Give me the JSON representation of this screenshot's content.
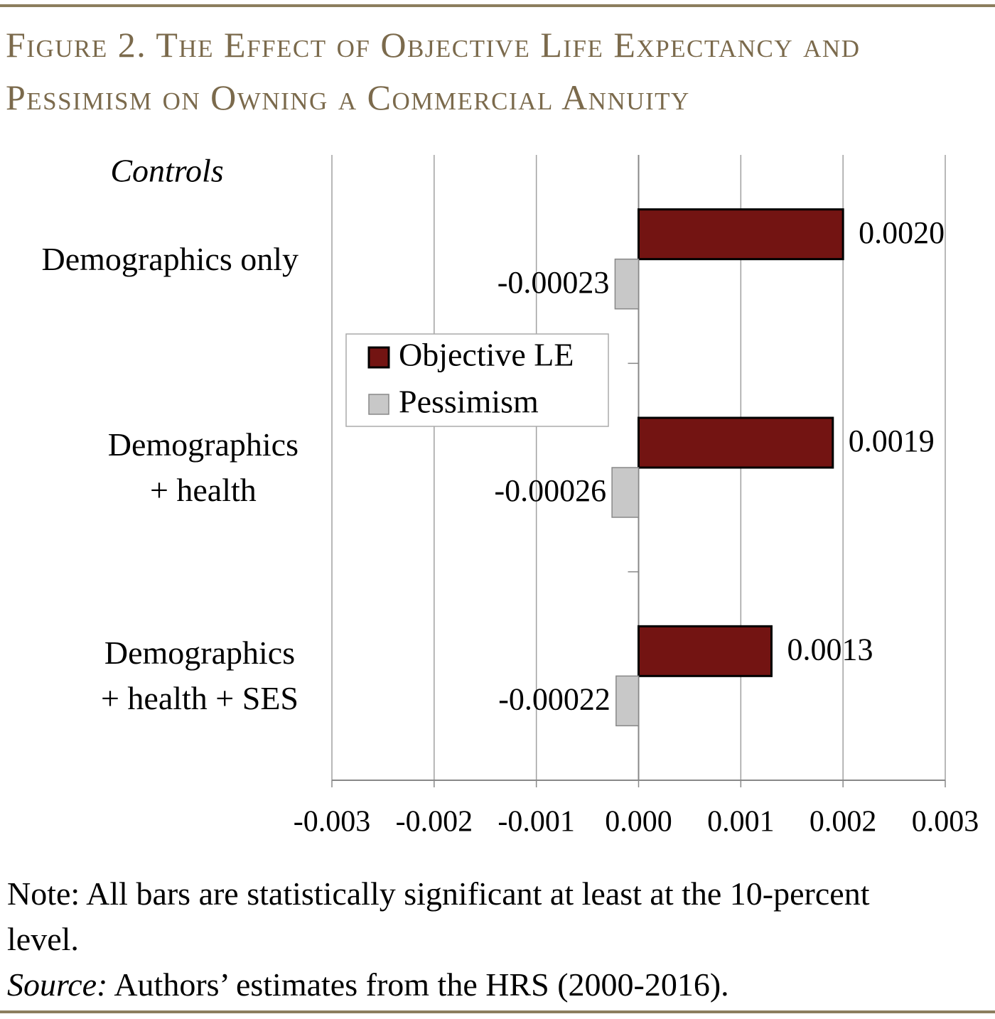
{
  "chart_data": {
    "type": "hbar",
    "title": "Figure 2. The Effect of Objective Life Expectancy and Pessimism on Owning a Commercial Annuity",
    "y_label": "Controls",
    "categories": [
      "Demographics only",
      "Demographics\n+ health",
      "Demographics\n+ health + SES"
    ],
    "series": [
      {
        "name": "Objective LE",
        "color": "#731412",
        "values": [
          0.002,
          0.0019,
          0.0013
        ],
        "value_labels": [
          "0.0020",
          "0.0019",
          "0.0013"
        ]
      },
      {
        "name": "Pessimism",
        "color": "#c8c8c8",
        "values": [
          -0.00023,
          -0.00026,
          -0.00022
        ],
        "value_labels": [
          "-0.00023",
          "-0.00026",
          "-0.00022"
        ]
      }
    ],
    "xlim": [
      -0.003,
      0.003
    ],
    "xticks": [
      -0.003,
      -0.002,
      -0.001,
      {
        "value": 0,
        "label": "0.000"
      },
      0.001,
      0.002,
      0.003
    ],
    "grid": true,
    "legend": "center left",
    "note": "Note: All bars are statistically significant at least at the 10-percent level.",
    "source_label": "Source:",
    "source": "Authors’ estimates from the HRS (2000-2016)."
  }
}
